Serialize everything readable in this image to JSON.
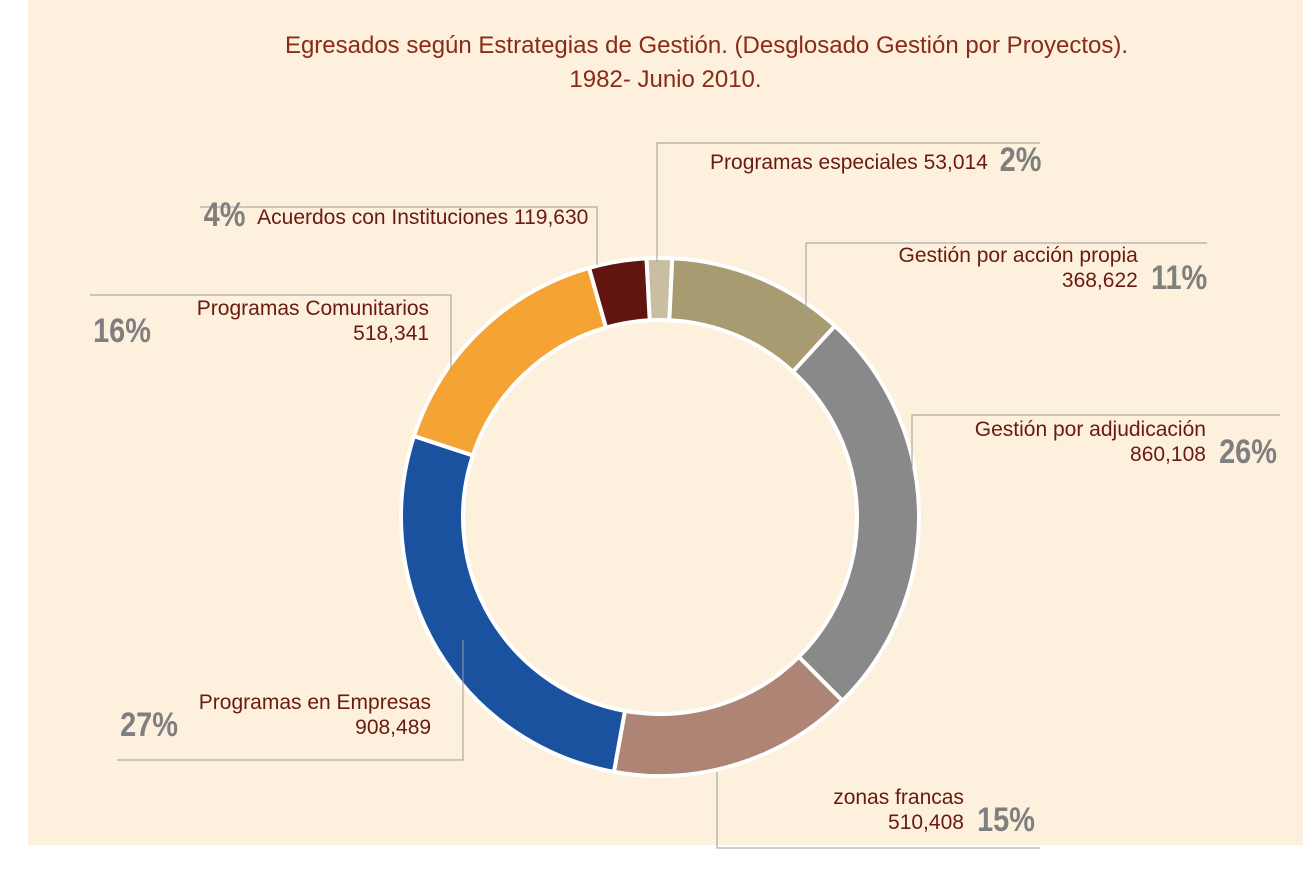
{
  "chart_data": {
    "type": "donut",
    "title": "Egresados según Estrategias de Gestión. (Desglosado Gestión por Proyectos).",
    "subtitle": "1982- Junio 2010.",
    "categories": [
      "Programas especiales",
      "Gestión por acción propia",
      "Gestión por adjudicación",
      "zonas francas",
      "Programas en Empresas",
      "Programas Comunitarios",
      "Acuerdos con Instituciones"
    ],
    "values": [
      53014,
      368622,
      860108,
      510408,
      908489,
      518341,
      119630
    ],
    "value_labels": [
      "53,014",
      "368,622",
      "860,108",
      "510,408",
      "908,489",
      "518,341",
      "119,630"
    ],
    "shares": [
      2,
      11,
      26,
      15,
      27,
      16,
      4
    ],
    "share_labels": [
      "2%",
      "11%",
      "26%",
      "15%",
      "27%",
      "16%",
      "4%"
    ],
    "colors": [
      "#c9bda2",
      "#a89a71",
      "#898989",
      "#ae8474",
      "#1b52a0",
      "#f4a334",
      "#62140e"
    ]
  }
}
